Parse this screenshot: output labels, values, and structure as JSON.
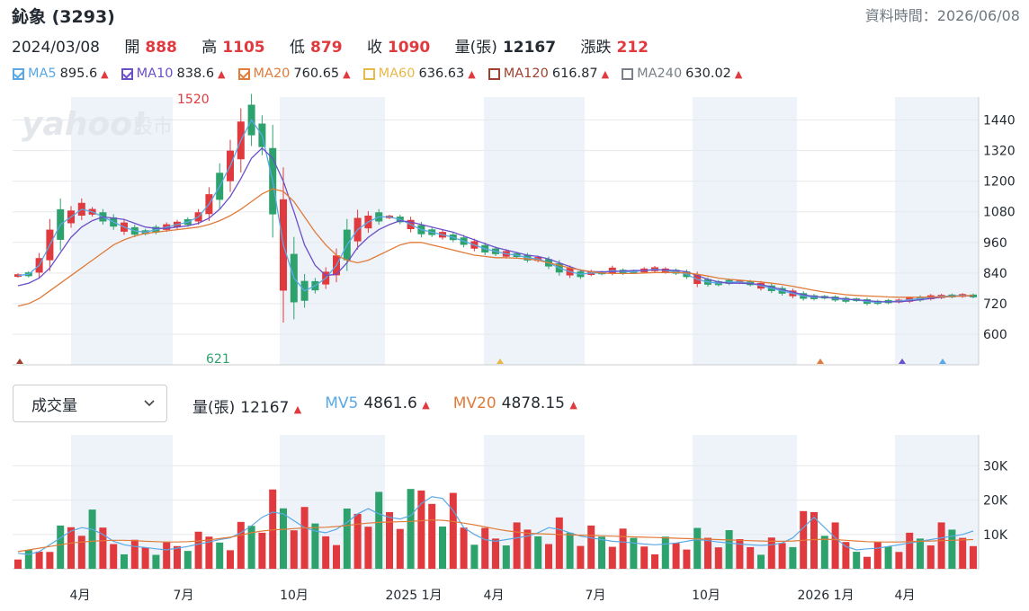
{
  "header": {
    "title": "鈊象 (3293)",
    "data_time_label": "資料時間：2026/06/08"
  },
  "ohlc": {
    "date": "2024/03/08",
    "open_label": "開",
    "open": "888",
    "high_label": "高",
    "high": "1105",
    "low_label": "低",
    "low": "879",
    "close_label": "收",
    "close": "1090",
    "volume_label": "量(張)",
    "volume": "12167",
    "change_label": "漲跌",
    "change": "212"
  },
  "ma_legend": [
    {
      "name": "MA5",
      "value": "895.6",
      "color": "#5aa9e6",
      "checked": true
    },
    {
      "name": "MA10",
      "value": "838.6",
      "color": "#6b4fc9",
      "checked": true
    },
    {
      "name": "MA20",
      "value": "760.65",
      "color": "#e07b39",
      "checked": true
    },
    {
      "name": "MA60",
      "value": "636.63",
      "color": "#e8b84a",
      "checked": false
    },
    {
      "name": "MA120",
      "value": "616.87",
      "color": "#a04030",
      "checked": false
    },
    {
      "name": "MA240",
      "value": "630.02",
      "color": "#7a8088",
      "checked": false
    }
  ],
  "volume_panel": {
    "select_label": "成交量",
    "vol_label": "量(張)",
    "vol_value": "12167",
    "mv5_label": "MV5",
    "mv5_value": "4861.6",
    "mv20_label": "MV20",
    "mv20_value": "4878.15"
  },
  "watermark": {
    "brand": "yahoo!",
    "suffix": "股市"
  },
  "colors": {
    "up": "#e03a3e",
    "down": "#2ea26d",
    "band": "#eef3f9",
    "grid": "#e6e9ed"
  },
  "chart_data": {
    "type": "candlestick",
    "price_axis": {
      "ticks": [
        600,
        720,
        840,
        960,
        1080,
        1200,
        1320,
        1440
      ],
      "range": [
        480,
        1530
      ]
    },
    "volume_axis": {
      "ticks": [
        "10K",
        "20K",
        "30K"
      ],
      "tick_values": [
        10000,
        20000,
        30000
      ],
      "range": [
        0,
        39000
      ]
    },
    "x_labels": [
      "4月",
      "7月",
      "10月",
      "2025 1月",
      "4月",
      "7月",
      "10月",
      "2026 1月",
      "4月"
    ],
    "annotations": {
      "high": "1520",
      "low": "621"
    },
    "series": [
      {
        "name": "MA5",
        "color": "#5aa9e6",
        "values": [
          830,
          835,
          870,
          950,
          1030,
          1060,
          1090,
          1080,
          1060,
          1040,
          1020,
          1005,
          1000,
          1010,
          1020,
          1030,
          1040,
          1060,
          1110,
          1180,
          1260,
          1360,
          1440,
          1380,
          1200,
          950,
          820,
          770,
          790,
          820,
          870,
          950,
          1010,
          1040,
          1060,
          1060,
          1050,
          1030,
          1010,
          1000,
          990,
          980,
          965,
          950,
          935,
          925,
          915,
          910,
          900,
          895,
          880,
          860,
          845,
          835,
          840,
          840,
          850,
          845,
          845,
          850,
          855,
          850,
          845,
          835,
          815,
          805,
          800,
          805,
          805,
          800,
          790,
          780,
          770,
          760,
          750,
          745,
          745,
          740,
          735,
          735,
          728,
          725,
          728,
          730,
          735,
          740,
          745,
          748,
          750,
          752,
          750
        ]
      },
      {
        "name": "MA10",
        "color": "#6b4fc9",
        "values": [
          790,
          800,
          820,
          860,
          920,
          980,
          1020,
          1045,
          1060,
          1055,
          1050,
          1035,
          1020,
          1015,
          1015,
          1020,
          1025,
          1035,
          1055,
          1090,
          1140,
          1210,
          1290,
          1330,
          1290,
          1200,
          1080,
          950,
          870,
          830,
          835,
          880,
          940,
          980,
          1010,
          1030,
          1045,
          1040,
          1030,
          1020,
          1010,
          1000,
          985,
          970,
          955,
          940,
          930,
          920,
          910,
          905,
          895,
          880,
          865,
          850,
          845,
          845,
          845,
          848,
          850,
          850,
          852,
          852,
          850,
          845,
          830,
          815,
          805,
          800,
          800,
          798,
          795,
          785,
          775,
          765,
          755,
          748,
          745,
          742,
          738,
          735,
          732,
          728,
          727,
          727,
          730,
          735,
          740,
          745,
          748,
          750,
          750
        ]
      },
      {
        "name": "MA20",
        "color": "#e07b39",
        "values": [
          710,
          720,
          740,
          770,
          800,
          830,
          860,
          890,
          920,
          950,
          970,
          985,
          995,
          1000,
          1005,
          1010,
          1015,
          1020,
          1030,
          1045,
          1065,
          1090,
          1120,
          1150,
          1170,
          1160,
          1120,
          1060,
          1000,
          950,
          910,
          890,
          880,
          890,
          910,
          930,
          950,
          960,
          960,
          950,
          940,
          930,
          920,
          910,
          905,
          900,
          900,
          898,
          895,
          890,
          880,
          870,
          860,
          852,
          845,
          840,
          838,
          838,
          838,
          840,
          842,
          842,
          842,
          840,
          835,
          828,
          820,
          815,
          812,
          808,
          805,
          800,
          795,
          788,
          780,
          772,
          765,
          760,
          755,
          752,
          750,
          748,
          746,
          745,
          745,
          745,
          746,
          746,
          748,
          750,
          752
        ]
      }
    ],
    "volume_series": [
      {
        "name": "MV5",
        "color": "#5aa9e6",
        "values": [
          4500,
          4200,
          5000,
          7000,
          9000,
          11000,
          12000,
          11500,
          10000,
          8000,
          7000,
          6500,
          6200,
          5800,
          5500,
          6000,
          6500,
          7200,
          7800,
          8500,
          9000,
          10500,
          12500,
          15000,
          16500,
          16000,
          14000,
          12000,
          11000,
          10500,
          11500,
          13500,
          16000,
          17500,
          16000,
          15000,
          14500,
          15500,
          19000,
          21000,
          20500,
          17000,
          12000,
          10000,
          8500,
          8000,
          8500,
          9000,
          9500,
          10500,
          12000,
          11500,
          10500,
          9500,
          9000,
          8500,
          8000,
          7800,
          7500,
          7200,
          7000,
          7200,
          7500,
          8000,
          8500,
          8200,
          7800,
          7500,
          7200,
          7000,
          6800,
          7000,
          7500,
          9000,
          12000,
          15000,
          12000,
          9000,
          6500,
          5500,
          5800,
          6000,
          6500,
          7000,
          7500,
          8000,
          8500,
          9000,
          9500,
          10000,
          11000
        ]
      },
      {
        "name": "MV20",
        "color": "#e07b39",
        "values": [
          5000,
          5500,
          6000,
          6500,
          7000,
          7500,
          7800,
          8000,
          8200,
          8300,
          8300,
          8200,
          8000,
          7900,
          7800,
          7800,
          7900,
          8100,
          8400,
          8800,
          9200,
          9800,
          10500,
          11000,
          11300,
          11500,
          11700,
          11900,
          12000,
          12100,
          12300,
          12600,
          13000,
          13300,
          13500,
          13600,
          13700,
          13800,
          14000,
          14200,
          14100,
          13800,
          13300,
          12800,
          12200,
          11600,
          11100,
          10700,
          10400,
          10200,
          10100,
          10000,
          9900,
          9800,
          9700,
          9600,
          9500,
          9400,
          9300,
          9200,
          9100,
          9000,
          8900,
          8800,
          8700,
          8600,
          8500,
          8400,
          8300,
          8200,
          8100,
          8000,
          8000,
          8100,
          8300,
          8500,
          8600,
          8500,
          8300,
          8100,
          7900,
          7800,
          7800,
          7800,
          7900,
          8000,
          8100,
          8200,
          8300,
          8400,
          8500
        ]
      }
    ]
  }
}
